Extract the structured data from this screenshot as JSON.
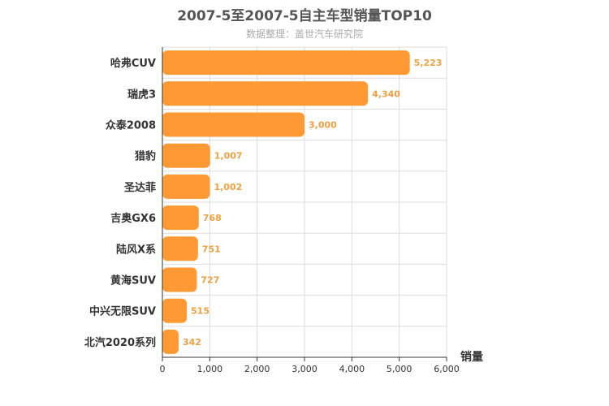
{
  "chart_data": {
    "type": "bar",
    "orientation": "horizontal",
    "title": "2007-5至2007-5自主车型销量TOP10",
    "subtitle": "数据整理：盖世汽车研究院",
    "xlabel": "销量",
    "categories": [
      "哈弗CUV",
      "瑞虎3",
      "众泰2008",
      "猎豹",
      "圣达菲",
      "吉奥GX6",
      "陆风X系",
      "黄海SUV",
      "中兴无限SUV",
      "北汽2020系列"
    ],
    "values": [
      5223,
      4340,
      3000,
      1007,
      1002,
      768,
      751,
      727,
      515,
      342
    ],
    "value_labels": [
      "5,223",
      "4,340",
      "3,000",
      "1,007",
      "1,002",
      "768",
      "751",
      "727",
      "515",
      "342"
    ],
    "xlim": [
      0,
      6000
    ],
    "ticks": [
      0,
      1000,
      2000,
      3000,
      4000,
      5000,
      6000
    ],
    "tick_labels": [
      "0",
      "1,000",
      "2,000",
      "3,000",
      "4,000",
      "5,000",
      "6,000"
    ],
    "grid": true,
    "bar_color": "#ff9933",
    "label_color": "#f0a040"
  }
}
